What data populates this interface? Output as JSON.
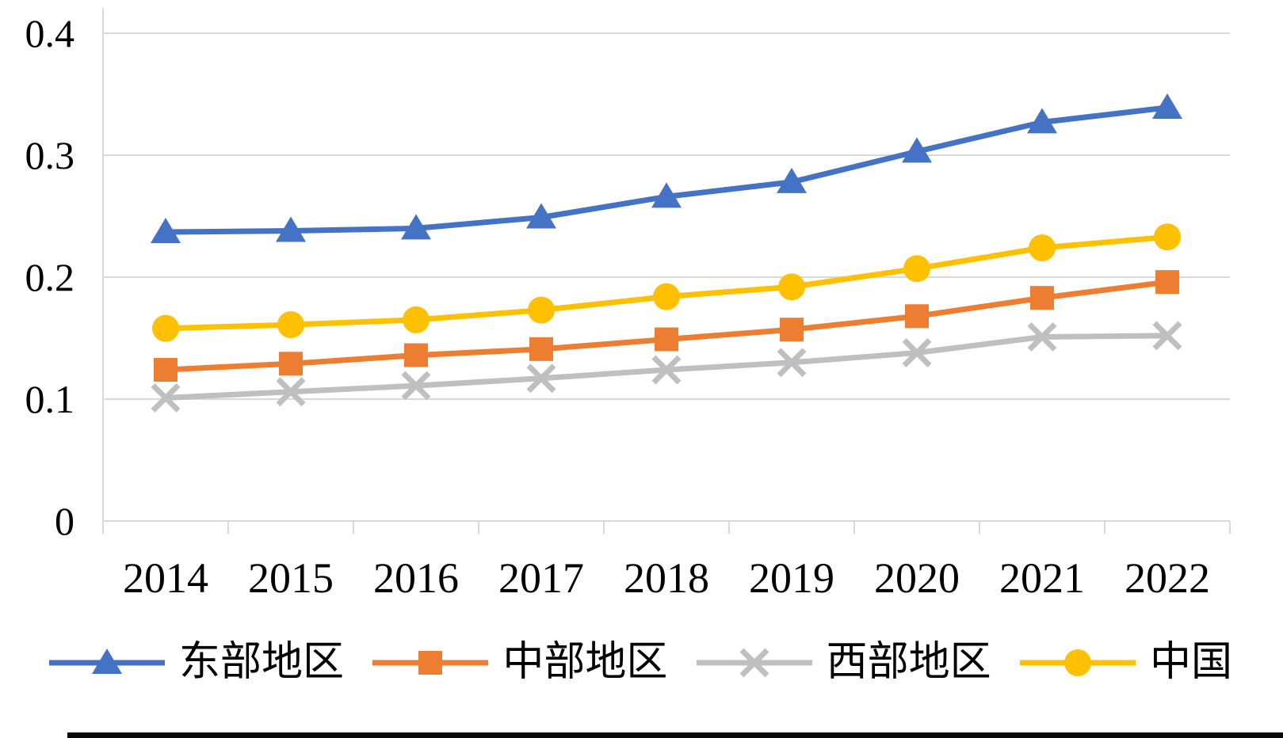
{
  "page": {
    "background": "#ffffff"
  },
  "chart_data": {
    "type": "line",
    "title": "",
    "xlabel": "",
    "ylabel": "",
    "x_categories": [
      "2014",
      "2015",
      "2016",
      "2017",
      "2018",
      "2019",
      "2020",
      "2021",
      "2022"
    ],
    "ylim": [
      0,
      0.4
    ],
    "yticks": [
      0,
      0.1,
      0.2,
      0.3,
      0.4
    ],
    "ytick_labels": [
      "0",
      "0.1",
      "0.2",
      "0.3",
      "0.4"
    ],
    "grid": "horizontal",
    "legend_position": "bottom",
    "axis_color": "#d9d9d9",
    "series": [
      {
        "name": "东部地区",
        "marker": "triangle",
        "color": "#4472c4",
        "values": [
          0.237,
          0.238,
          0.24,
          0.249,
          0.266,
          0.278,
          0.303,
          0.327,
          0.339
        ]
      },
      {
        "name": "中部地区",
        "marker": "square",
        "color": "#ed7d31",
        "values": [
          0.124,
          0.129,
          0.136,
          0.141,
          0.149,
          0.157,
          0.168,
          0.183,
          0.196
        ]
      },
      {
        "name": "西部地区",
        "marker": "x",
        "color": "#bfbfbf",
        "values": [
          0.101,
          0.106,
          0.111,
          0.117,
          0.124,
          0.13,
          0.138,
          0.151,
          0.152
        ]
      },
      {
        "name": "中国",
        "marker": "circle",
        "color": "#ffc000",
        "values": [
          0.158,
          0.161,
          0.165,
          0.173,
          0.184,
          0.192,
          0.207,
          0.224,
          0.233
        ]
      }
    ]
  }
}
